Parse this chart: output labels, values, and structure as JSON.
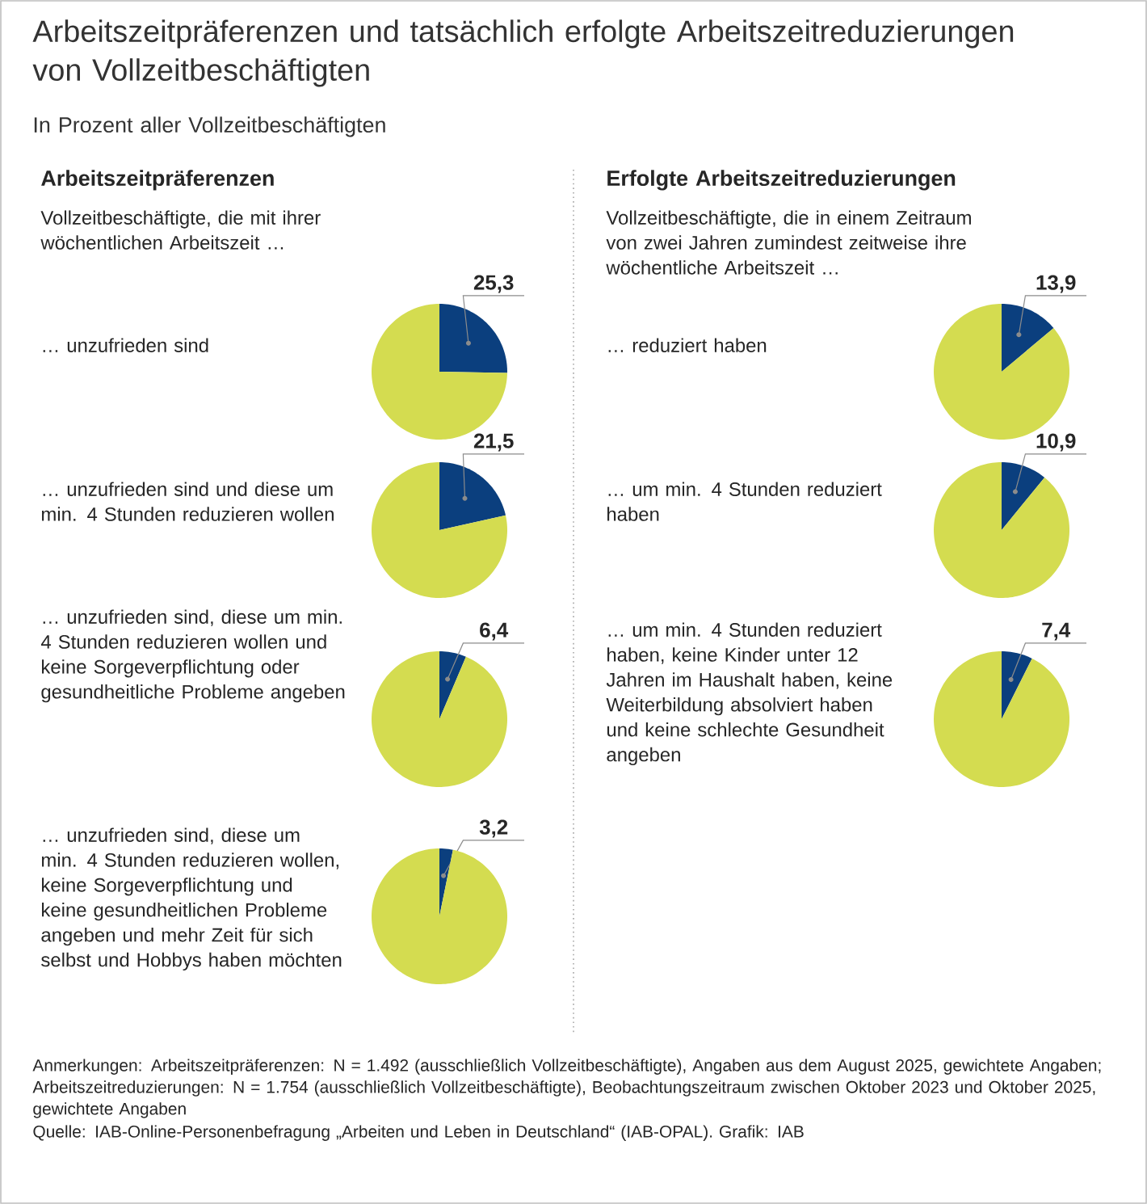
{
  "chart_data": [
    {
      "type": "other",
      "title": "Arbeitszeitpräferenzen und tatsächlich erfolgte Arbeitszeitreduzierungen von Vollzeitbeschäftigten",
      "subtitle": "In Prozent aller Vollzeitbeschäftigten",
      "annotations": [
        "Anmerkungen: Arbeitszeitpräferenzen: N = 1.492 (ausschließlich Vollzeitbeschäftigte), Angaben aus dem August 2025, gewichtete Angaben; Arbeitszeitreduzierungen: N = 1.754 (ausschließlich Vollzeitbeschäftigte), Beobachtungszeitraum zwischen Oktober 2023 und Oktober 2025, gewichtete Angaben",
        "Quelle: IAB-Online-Personenbefragung „Arbeiten und Leben in Deutschland“ (IAB-OPAL). Grafik: IAB"
      ]
    },
    {
      "type": "pie",
      "title": "Arbeitszeitpräferenzen",
      "subtitle": "Vollzeitbeschäftigte, die mit ihrer wöchentlichen Arbeitszeit …",
      "annotations": [
        "… unzufrieden sind"
      ],
      "categories": [
        null,
        null
      ],
      "values": [
        25.3,
        74.7
      ],
      "colors": [
        "#0b3f7e",
        "#d4dc50"
      ],
      "value_labels": [
        "25,3",
        null
      ]
    },
    {
      "type": "pie",
      "annotations": [
        "… unzufrieden sind und diese um min. 4 Stunden reduzieren wollen"
      ],
      "categories": [
        null,
        null
      ],
      "values": [
        21.5,
        78.5
      ],
      "colors": [
        "#0b3f7e",
        "#d4dc50"
      ],
      "value_labels": [
        "21,5",
        null
      ]
    },
    {
      "type": "pie",
      "annotations": [
        "… unzufrieden sind, diese um min. 4 Stunden reduzieren wollen und keine Sorgeverpflichtung oder gesundheitliche Probleme angeben"
      ],
      "categories": [
        null,
        null
      ],
      "values": [
        6.4,
        93.6
      ],
      "colors": [
        "#0b3f7e",
        "#d4dc50"
      ],
      "value_labels": [
        "6,4",
        null
      ]
    },
    {
      "type": "pie",
      "annotations": [
        "… unzufrieden sind, diese um min. 4 Stunden reduzieren wollen, keine Sorgeverpflichtung und keine gesundheitlichen Probleme angeben und mehr Zeit für sich selbst und Hobbys haben möchten"
      ],
      "categories": [
        null,
        null
      ],
      "values": [
        3.2,
        96.8
      ],
      "colors": [
        "#0b3f7e",
        "#d4dc50"
      ],
      "value_labels": [
        "3,2",
        null
      ]
    },
    {
      "type": "pie",
      "title": "Erfolgte Arbeitszeitreduzierungen",
      "subtitle": "Vollzeitbeschäftigte, die in einem Zeitraum von zwei Jahren zumindest zeitweise ihre wöchentliche Arbeitszeit …",
      "annotations": [
        "… reduziert haben"
      ],
      "categories": [
        null,
        null
      ],
      "values": [
        13.9,
        86.1
      ],
      "colors": [
        "#0b3f7e",
        "#d4dc50"
      ],
      "value_labels": [
        "13,9",
        null
      ]
    },
    {
      "type": "pie",
      "annotations": [
        "… um min. 4 Stunden reduziert haben"
      ],
      "categories": [
        null,
        null
      ],
      "values": [
        10.9,
        89.1
      ],
      "colors": [
        "#0b3f7e",
        "#d4dc50"
      ],
      "value_labels": [
        "10,9",
        null
      ]
    },
    {
      "type": "pie",
      "annotations": [
        "… um min. 4 Stunden reduziert haben, keine Kinder unter 12 Jahren im Haushalt haben, keine Weiterbildung absolviert haben und keine schlechte Gesundheit angeben"
      ],
      "categories": [
        null,
        null
      ],
      "values": [
        7.4,
        92.6
      ],
      "colors": [
        "#0b3f7e",
        "#d4dc50"
      ],
      "value_labels": [
        "7,4",
        null
      ]
    }
  ]
}
